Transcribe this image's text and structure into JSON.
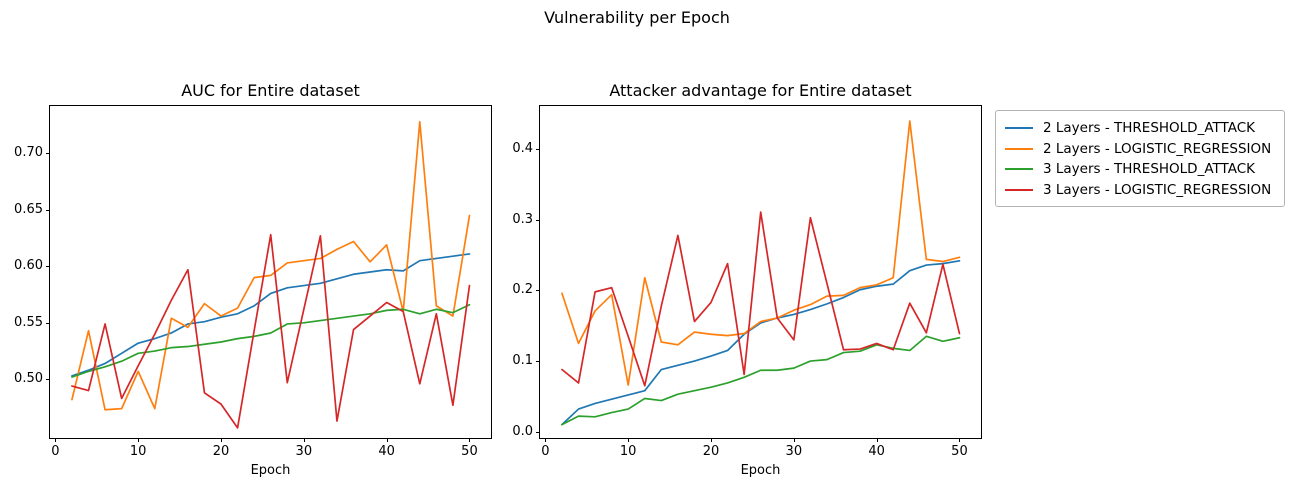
{
  "figure": {
    "suptitle": "Vulnerability per Epoch",
    "background_color": "#ffffff"
  },
  "legend": {
    "entries": [
      {
        "label": "2 Layers - THRESHOLD_ATTACK",
        "color": "#1f77b4"
      },
      {
        "label": "2 Layers - LOGISTIC_REGRESSION",
        "color": "#ff7f0e"
      },
      {
        "label": "3 Layers - THRESHOLD_ATTACK",
        "color": "#2ca02c"
      },
      {
        "label": "3 Layers - LOGISTIC_REGRESSION",
        "color": "#d62728"
      }
    ]
  },
  "chart_data": [
    {
      "type": "line",
      "title": "AUC for Entire dataset",
      "xlabel": "Epoch",
      "ylabel": "",
      "grid": false,
      "xlim": [
        -0.65,
        52.6
      ],
      "ylim": [
        0.448,
        0.742
      ],
      "xticks": [
        0,
        10,
        20,
        30,
        40,
        50
      ],
      "yticks": [
        0.5,
        0.55,
        0.6,
        0.65,
        0.7
      ],
      "ytick_labels": [
        "0.50",
        "0.55",
        "0.60",
        "0.65",
        "0.70"
      ],
      "x": [
        2,
        4,
        6,
        8,
        10,
        12,
        14,
        16,
        18,
        20,
        22,
        24,
        26,
        28,
        30,
        32,
        34,
        36,
        38,
        40,
        42,
        44,
        46,
        48,
        50
      ],
      "series": [
        {
          "name": "2 Layers - THRESHOLD_ATTACK",
          "color": "#1f77b4",
          "values": [
            0.503,
            0.508,
            0.514,
            0.523,
            0.532,
            0.536,
            0.541,
            0.549,
            0.551,
            0.555,
            0.558,
            0.565,
            0.576,
            0.581,
            0.583,
            0.585,
            0.589,
            0.593,
            0.595,
            0.597,
            0.596,
            0.605,
            0.607,
            0.609,
            0.611
          ]
        },
        {
          "name": "2 Layers - LOGISTIC_REGRESSION",
          "color": "#ff7f0e",
          "values": [
            0.482,
            0.543,
            0.473,
            0.474,
            0.507,
            0.474,
            0.554,
            0.546,
            0.567,
            0.556,
            0.563,
            0.59,
            0.592,
            0.603,
            0.605,
            0.607,
            0.615,
            0.622,
            0.604,
            0.619,
            0.56,
            0.728,
            0.565,
            0.556,
            0.645
          ]
        },
        {
          "name": "3 Layers - THRESHOLD_ATTACK",
          "color": "#2ca02c",
          "values": [
            0.502,
            0.507,
            0.511,
            0.516,
            0.523,
            0.525,
            0.528,
            0.529,
            0.531,
            0.533,
            0.536,
            0.538,
            0.541,
            0.549,
            0.55,
            0.552,
            0.554,
            0.556,
            0.558,
            0.561,
            0.562,
            0.558,
            0.562,
            0.559,
            0.566
          ]
        },
        {
          "name": "3 Layers - LOGISTIC_REGRESSION",
          "color": "#d62728",
          "values": [
            0.494,
            0.49,
            0.549,
            0.483,
            0.512,
            0.54,
            0.57,
            0.597,
            0.488,
            0.478,
            0.457,
            0.543,
            0.628,
            0.497,
            0.562,
            0.627,
            0.463,
            0.544,
            0.556,
            0.568,
            0.56,
            0.496,
            0.558,
            0.477,
            0.583
          ]
        }
      ]
    },
    {
      "type": "line",
      "title": "Attacker advantage for Entire dataset",
      "xlabel": "Epoch",
      "ylabel": "",
      "grid": false,
      "xlim": [
        -0.65,
        52.6
      ],
      "ylim": [
        -0.009,
        0.4613
      ],
      "xticks": [
        0,
        10,
        20,
        30,
        40,
        50
      ],
      "yticks": [
        0.0,
        0.1,
        0.2,
        0.3,
        0.4
      ],
      "ytick_labels": [
        "0.0",
        "0.1",
        "0.2",
        "0.3",
        "0.4"
      ],
      "x": [
        2,
        4,
        6,
        8,
        10,
        12,
        14,
        16,
        18,
        20,
        22,
        24,
        26,
        28,
        30,
        32,
        34,
        36,
        38,
        40,
        42,
        44,
        46,
        48,
        50
      ],
      "series": [
        {
          "name": "2 Layers - THRESHOLD_ATTACK",
          "color": "#1f77b4",
          "values": [
            0.01,
            0.032,
            0.04,
            0.046,
            0.052,
            0.058,
            0.088,
            0.094,
            0.1,
            0.107,
            0.115,
            0.138,
            0.154,
            0.161,
            0.166,
            0.173,
            0.181,
            0.19,
            0.201,
            0.206,
            0.209,
            0.228,
            0.236,
            0.238,
            0.242
          ]
        },
        {
          "name": "2 Layers - LOGISTIC_REGRESSION",
          "color": "#ff7f0e",
          "values": [
            0.196,
            0.125,
            0.171,
            0.194,
            0.066,
            0.218,
            0.127,
            0.123,
            0.141,
            0.138,
            0.136,
            0.139,
            0.156,
            0.161,
            0.172,
            0.18,
            0.192,
            0.193,
            0.204,
            0.208,
            0.218,
            0.44,
            0.244,
            0.241,
            0.247
          ]
        },
        {
          "name": "3 Layers - THRESHOLD_ATTACK",
          "color": "#2ca02c",
          "values": [
            0.01,
            0.022,
            0.021,
            0.027,
            0.032,
            0.047,
            0.044,
            0.053,
            0.058,
            0.063,
            0.069,
            0.077,
            0.087,
            0.087,
            0.09,
            0.1,
            0.102,
            0.112,
            0.114,
            0.123,
            0.118,
            0.115,
            0.135,
            0.128,
            0.133
          ]
        },
        {
          "name": "3 Layers - LOGISTIC_REGRESSION",
          "color": "#d62728",
          "values": [
            0.088,
            0.069,
            0.198,
            0.204,
            0.135,
            0.065,
            0.178,
            0.278,
            0.156,
            0.183,
            0.238,
            0.081,
            0.311,
            0.161,
            0.13,
            0.303,
            0.21,
            0.116,
            0.117,
            0.125,
            0.116,
            0.182,
            0.14,
            0.237,
            0.139
          ]
        }
      ]
    }
  ]
}
